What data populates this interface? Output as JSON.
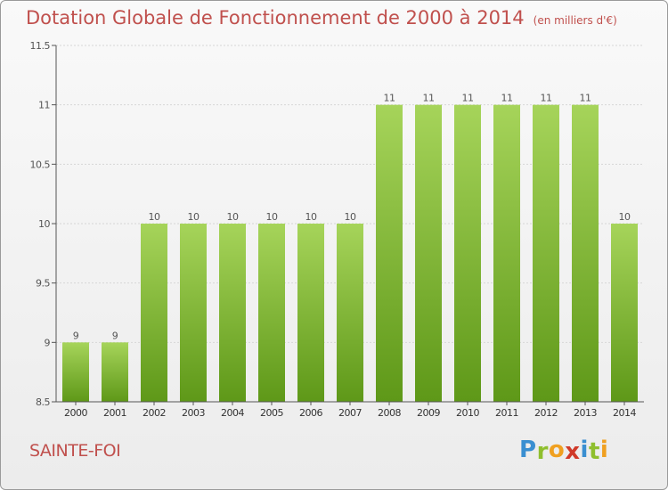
{
  "header": {
    "title": "Dotation Globale de Fonctionnement de 2000 à 2014",
    "subtitle": "(en milliers d'€)"
  },
  "footer": {
    "commune": "SAINTE-FOI"
  },
  "logo": {
    "letters": [
      "P",
      "r",
      "o",
      "x",
      "i",
      "t",
      "i"
    ],
    "colors": [
      "#3a8fd1",
      "#8fbf2e",
      "#f0a020",
      "#d03a2a",
      "#3a8fd1",
      "#8fbf2e",
      "#f0a020"
    ]
  },
  "colors": {
    "bar_top": "#a6d45a",
    "bar_bottom": "#5e9818",
    "title": "#c0504d"
  },
  "chart_data": {
    "type": "bar",
    "categories": [
      "2000",
      "2001",
      "2002",
      "2003",
      "2004",
      "2005",
      "2006",
      "2007",
      "2008",
      "2009",
      "2010",
      "2011",
      "2012",
      "2013",
      "2014"
    ],
    "values": [
      9,
      9,
      10,
      10,
      10,
      10,
      10,
      10,
      11,
      11,
      11,
      11,
      11,
      11,
      10
    ],
    "data_labels": [
      "9",
      "9",
      "10",
      "10",
      "10",
      "10",
      "10",
      "10",
      "11",
      "11",
      "11",
      "11",
      "11",
      "11",
      "10"
    ],
    "yticks": [
      8.5,
      9,
      9.5,
      10,
      10.5,
      11,
      11.5
    ],
    "ytick_labels": [
      "8.5",
      "9",
      "9.5",
      "10",
      "10.5",
      "11",
      "11.5"
    ],
    "ylim": [
      8.5,
      11.5
    ],
    "grid": true
  }
}
